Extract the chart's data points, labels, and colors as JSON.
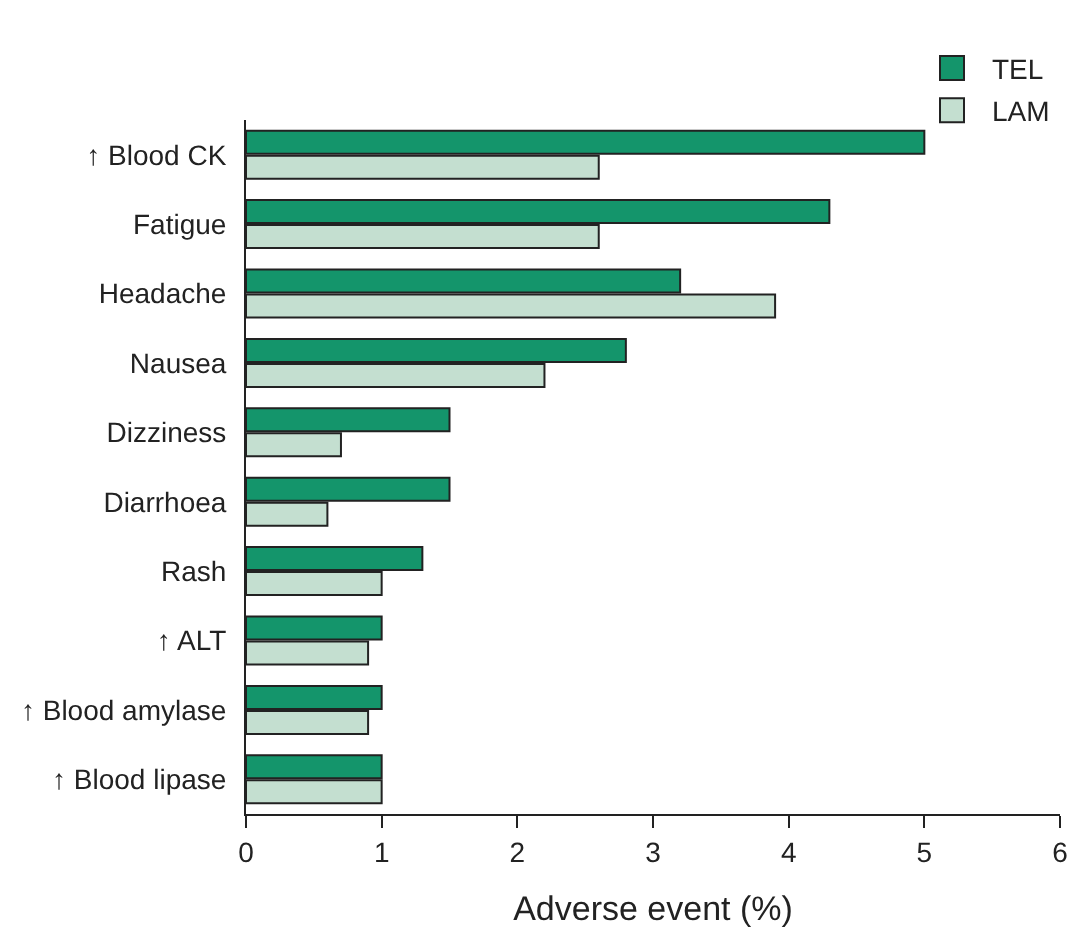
{
  "chart_data": {
    "type": "bar",
    "orientation": "horizontal",
    "xlabel": "Adverse event (%)",
    "categories": [
      "↑ Blood CK",
      "Fatigue",
      "Headache",
      "Nausea",
      "Dizziness",
      "Diarrhoea",
      "Rash",
      "↑ ALT",
      "↑ Blood amylase",
      "↑ Blood lipase"
    ],
    "series": [
      {
        "name": "TEL",
        "color": "#14956b",
        "values": [
          5.0,
          4.3,
          3.2,
          2.8,
          1.5,
          1.5,
          1.3,
          1.0,
          1.0,
          1.0
        ]
      },
      {
        "name": "LAM",
        "color": "#c4dfd0",
        "values": [
          2.6,
          2.6,
          3.9,
          2.2,
          0.7,
          0.6,
          1.0,
          0.9,
          0.9,
          1.0
        ]
      }
    ],
    "xlim": [
      0,
      6
    ],
    "xticks": [
      0,
      1,
      2,
      3,
      4,
      5,
      6
    ],
    "legend": "top right"
  }
}
